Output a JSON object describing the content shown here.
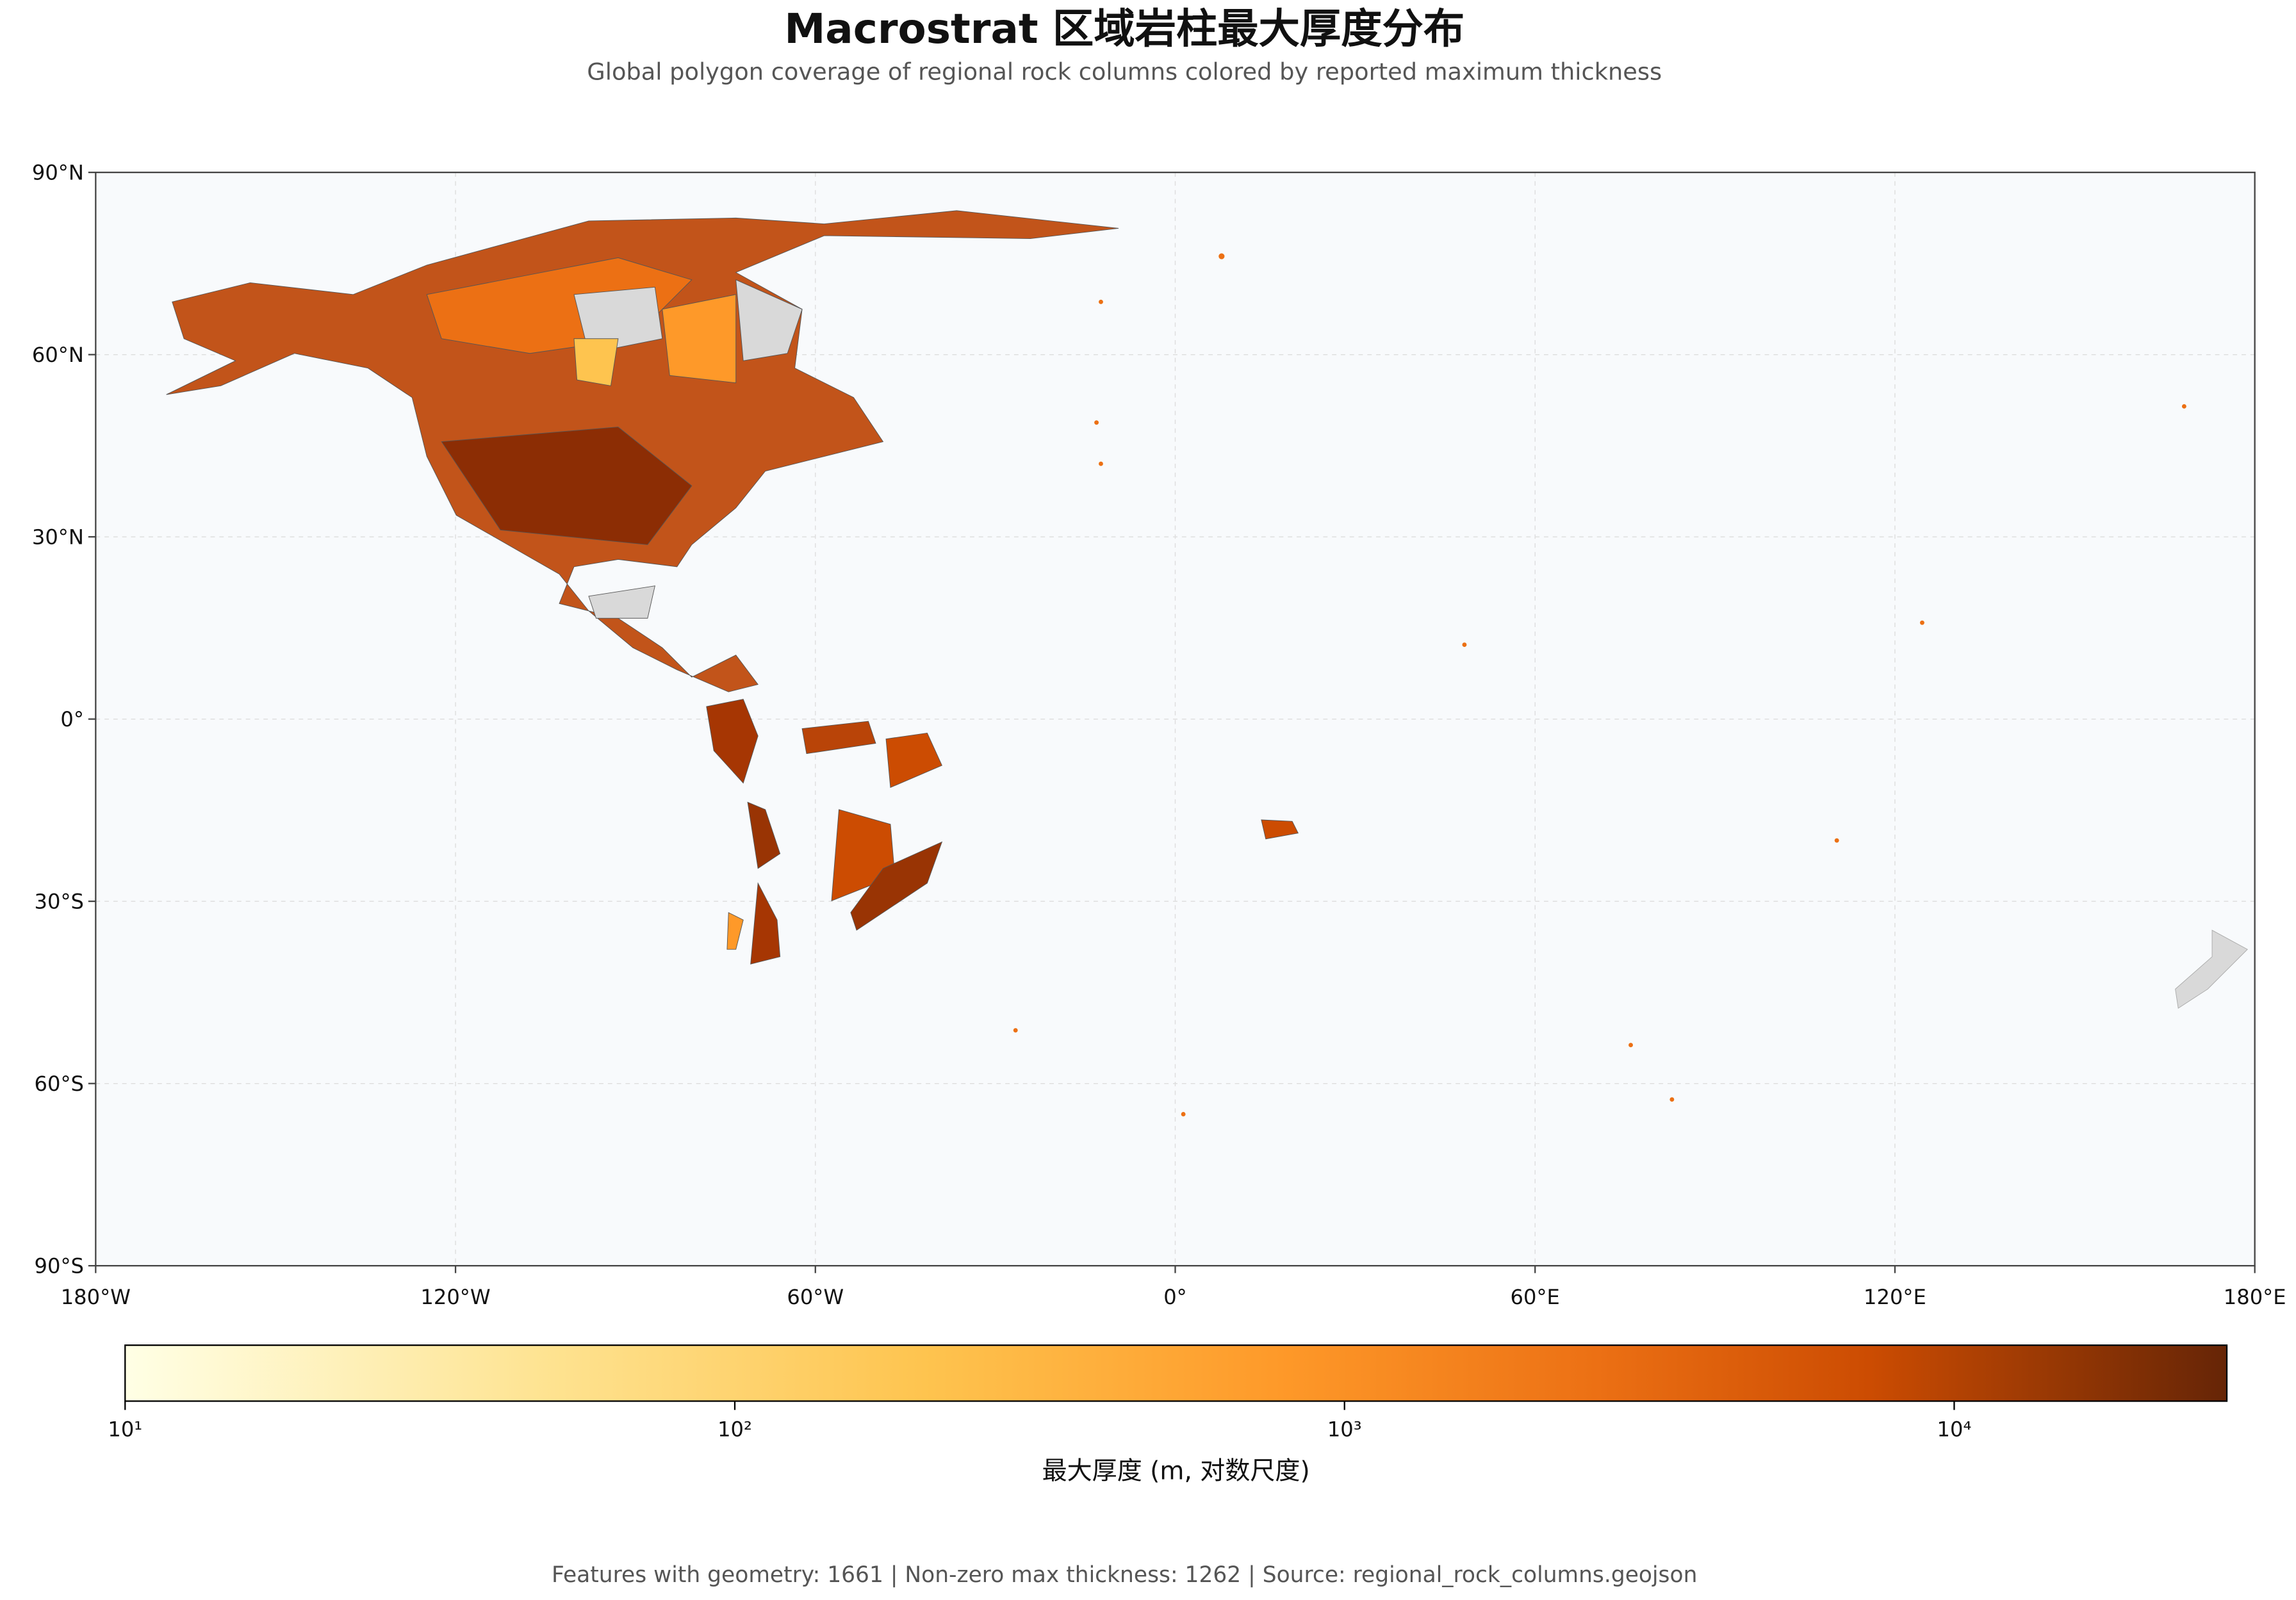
{
  "chart_data": {
    "type": "map",
    "title": "Macrostrat 区域岩柱最大厚度分布",
    "subtitle": "Global polygon coverage of regional rock columns colored by reported maximum thickness",
    "xlim": [
      -180,
      180
    ],
    "xticks": [
      {
        "value": -180,
        "label": "180°W"
      },
      {
        "value": -120,
        "label": "120°W"
      },
      {
        "value": -60,
        "label": "60°W"
      },
      {
        "value": 0,
        "label": "0°"
      },
      {
        "value": 60,
        "label": "60°E"
      },
      {
        "value": 120,
        "label": "120°E"
      },
      {
        "value": 180,
        "label": "180°E"
      }
    ],
    "ylim": [
      -90,
      90
    ],
    "yticks": [
      {
        "value": 90,
        "label": "90°N"
      },
      {
        "value": 60,
        "label": "60°N"
      },
      {
        "value": 30,
        "label": "30°N"
      },
      {
        "value": 0,
        "label": "0°"
      },
      {
        "value": -30,
        "label": "30°S"
      },
      {
        "value": -60,
        "label": "60°S"
      },
      {
        "value": -90,
        "label": "90°S"
      }
    ],
    "grid": true,
    "colorbar": {
      "label": "最大厚度 (m, 对数尺度)",
      "log": true,
      "lim": [
        10,
        28000
      ],
      "ticks": [
        {
          "value": 10,
          "label": "10¹"
        },
        {
          "value": 100,
          "label": "10²"
        },
        {
          "value": 1000,
          "label": "10³"
        },
        {
          "value": 10000,
          "label": "10⁴"
        }
      ]
    },
    "footer": "Features with geometry: 1661 | Non-zero max thickness: 1262 | Source: regional_rock_columns.geojson"
  }
}
